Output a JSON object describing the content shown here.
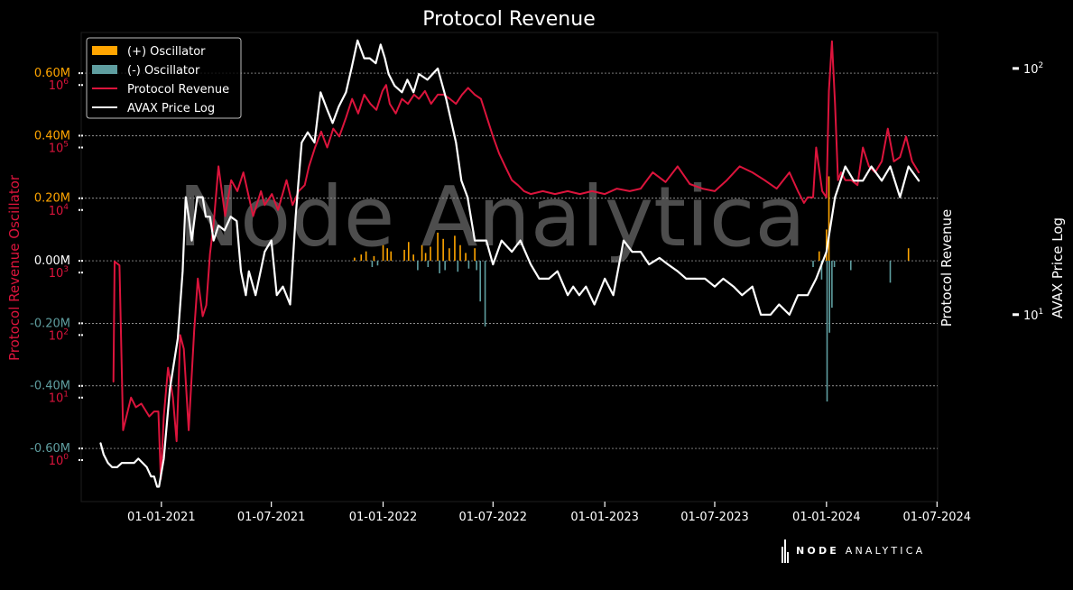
{
  "title": "Protocol Revenue",
  "watermark": "Node Analytica",
  "brand": {
    "primary": "NODE",
    "secondary": "ANALYTICA"
  },
  "colors": {
    "background": "#000000",
    "pos_oscillator": "#ffa500",
    "neg_oscillator": "#5f9ea0",
    "revenue": "#dc143c",
    "price": "#ffffff",
    "grid": "#ffffff",
    "watermark": "#8c8c8c"
  },
  "chart_data": {
    "type": "line",
    "title": "Protocol Revenue",
    "grid": true,
    "legend_position": "top-left",
    "legend": [
      "(+) Oscillator",
      "(-) Oscillator",
      "Protocol Revenue",
      "AVAX Price Log"
    ],
    "axes": {
      "x_ticks": [
        "01-01-2021",
        "01-07-2021",
        "01-01-2022",
        "01-07-2022",
        "01-01-2023",
        "01-07-2023",
        "01-01-2024",
        "01-07-2024"
      ],
      "x_range": [
        "2020-08-22",
        "2024-07-02"
      ],
      "left_oscillator": {
        "label": "Protocol Revenue Oscillator",
        "ticks": [
          "0.60M",
          "0.40M",
          "0.20M",
          "0.00M",
          "-0.20M",
          "-0.40M",
          "-0.60M"
        ],
        "range": [
          -0.77,
          0.73
        ]
      },
      "left_revenue_log": {
        "ticks": [
          "10^6",
          "10^5",
          "10^4",
          "10^3",
          "10^2",
          "10^1",
          "10^0"
        ]
      },
      "right_revenue": {
        "label": "Protocol Revenue"
      },
      "right_price_log": {
        "label": "AVAX Price Log",
        "ticks": [
          "10^2",
          "10^1"
        ],
        "range": [
          1.74,
          140
        ]
      }
    },
    "series": [
      {
        "name": "Protocol Revenue",
        "scale": "log",
        "x": [
          "2020-10-14",
          "2020-10-16",
          "2020-10-24",
          "2020-10-30",
          "2020-11-12",
          "2020-11-20",
          "2020-11-29",
          "2020-12-12",
          "2020-12-20",
          "2020-12-27",
          "2020-12-31",
          "2021-01-05",
          "2021-01-12",
          "2021-01-20",
          "2021-01-26",
          "2021-02-01",
          "2021-02-07",
          "2021-02-15",
          "2021-02-24",
          "2021-03-02",
          "2021-03-10",
          "2021-03-16",
          "2021-03-22",
          "2021-03-28",
          "2021-04-05",
          "2021-04-16",
          "2021-04-26",
          "2021-05-06",
          "2021-05-16",
          "2021-06-01",
          "2021-06-14",
          "2021-06-20",
          "2021-07-02",
          "2021-07-12",
          "2021-07-26",
          "2021-08-05",
          "2021-08-15",
          "2021-08-25",
          "2021-09-01",
          "2021-09-11",
          "2021-09-21",
          "2021-10-01",
          "2021-10-11",
          "2021-10-21",
          "2021-11-01",
          "2021-11-11",
          "2021-11-21",
          "2021-12-01",
          "2021-12-11",
          "2021-12-21",
          "2021-12-31",
          "2022-01-06",
          "2022-01-12",
          "2022-01-22",
          "2022-02-01",
          "2022-02-11",
          "2022-02-21",
          "2022-03-01",
          "2022-03-11",
          "2022-03-21",
          "2022-04-01",
          "2022-04-11",
          "2022-04-21",
          "2022-05-01",
          "2022-05-11",
          "2022-05-21",
          "2022-06-01",
          "2022-06-11",
          "2022-06-21",
          "2022-07-01",
          "2022-07-11",
          "2022-07-21",
          "2022-08-01",
          "2022-08-11",
          "2022-08-21",
          "2022-09-01",
          "2022-09-21",
          "2022-10-11",
          "2022-11-01",
          "2022-11-21",
          "2022-12-11",
          "2023-01-01",
          "2023-01-21",
          "2023-02-11",
          "2023-03-01",
          "2023-03-21",
          "2023-04-11",
          "2023-05-01",
          "2023-05-21",
          "2023-06-11",
          "2023-07-01",
          "2023-07-21",
          "2023-08-11",
          "2023-09-01",
          "2023-09-21",
          "2023-10-11",
          "2023-11-01",
          "2023-11-15",
          "2023-11-25",
          "2023-12-01",
          "2023-12-10",
          "2023-12-15",
          "2023-12-25",
          "2024-01-01",
          "2024-01-05",
          "2024-01-10",
          "2024-01-15",
          "2024-01-20",
          "2024-01-25",
          "2024-02-01",
          "2024-02-11",
          "2024-02-21",
          "2024-03-01",
          "2024-03-11",
          "2024-03-21",
          "2024-04-01",
          "2024-04-11",
          "2024-04-21",
          "2024-05-01",
          "2024-05-11",
          "2024-05-21",
          "2024-06-01"
        ],
        "values": [
          18,
          1500,
          1300,
          3,
          10,
          7,
          8,
          5,
          6,
          6,
          0.5,
          5,
          30,
          10,
          2,
          100,
          60,
          3,
          120,
          800,
          200,
          300,
          2000,
          6000,
          50000,
          8000,
          30000,
          20000,
          40000,
          8000,
          20000,
          12000,
          18000,
          10000,
          30000,
          12000,
          20000,
          25000,
          50000,
          100000,
          180000,
          100000,
          200000,
          150000,
          300000,
          600000,
          350000,
          700000,
          500000,
          400000,
          800000,
          1000000,
          500000,
          350000,
          600000,
          500000,
          700000,
          600000,
          800000,
          500000,
          700000,
          700000,
          600000,
          500000,
          700000,
          900000,
          700000,
          600000,
          300000,
          150000,
          80000,
          50000,
          30000,
          25000,
          20000,
          18000,
          20000,
          18000,
          20000,
          18000,
          20000,
          18000,
          22000,
          20000,
          22000,
          40000,
          28000,
          50000,
          26000,
          22000,
          20000,
          30000,
          50000,
          40000,
          30000,
          22000,
          40000,
          20000,
          13000,
          16000,
          16000,
          100000,
          20000,
          16000,
          800000,
          5000000,
          500000,
          30000,
          40000,
          30000,
          30000,
          25000,
          100000,
          50000,
          40000,
          60000,
          200000,
          60000,
          70000,
          150000,
          60000,
          40000
        ]
      },
      {
        "name": "AVAX Price Log",
        "scale": "log",
        "x": [
          "2020-09-23",
          "2020-09-28",
          "2020-10-05",
          "2020-10-12",
          "2020-10-20",
          "2020-10-28",
          "2020-11-03",
          "2020-11-10",
          "2020-11-17",
          "2020-11-24",
          "2020-12-01",
          "2020-12-08",
          "2020-12-15",
          "2020-12-20",
          "2020-12-25",
          "2020-12-28",
          "2021-01-05",
          "2021-01-15",
          "2021-01-28",
          "2021-02-05",
          "2021-02-10",
          "2021-02-15",
          "2021-02-20",
          "2021-03-01",
          "2021-03-10",
          "2021-03-15",
          "2021-03-22",
          "2021-03-28",
          "2021-04-05",
          "2021-04-15",
          "2021-04-25",
          "2021-05-05",
          "2021-05-12",
          "2021-05-20",
          "2021-05-25",
          "2021-06-05",
          "2021-06-20",
          "2021-07-01",
          "2021-07-10",
          "2021-07-20",
          "2021-08-01",
          "2021-08-10",
          "2021-08-20",
          "2021-08-30",
          "2021-09-10",
          "2021-09-20",
          "2021-10-01",
          "2021-10-10",
          "2021-10-20",
          "2021-11-01",
          "2021-11-10",
          "2021-11-20",
          "2021-12-01",
          "2021-12-10",
          "2021-12-20",
          "2021-12-28",
          "2022-01-04",
          "2022-01-10",
          "2022-01-20",
          "2022-02-01",
          "2022-02-10",
          "2022-02-20",
          "2022-03-01",
          "2022-03-15",
          "2022-04-01",
          "2022-04-15",
          "2022-05-01",
          "2022-05-10",
          "2022-05-20",
          "2022-06-01",
          "2022-06-10",
          "2022-06-20",
          "2022-07-01",
          "2022-07-15",
          "2022-08-01",
          "2022-08-15",
          "2022-09-01",
          "2022-09-15",
          "2022-10-01",
          "2022-10-15",
          "2022-11-01",
          "2022-11-10",
          "2022-11-20",
          "2022-12-01",
          "2022-12-15",
          "2023-01-01",
          "2023-01-15",
          "2023-02-01",
          "2023-02-15",
          "2023-03-01",
          "2023-03-15",
          "2023-04-01",
          "2023-04-15",
          "2023-05-01",
          "2023-05-15",
          "2023-06-01",
          "2023-06-15",
          "2023-07-01",
          "2023-07-15",
          "2023-08-01",
          "2023-08-15",
          "2023-09-01",
          "2023-09-15",
          "2023-10-01",
          "2023-10-15",
          "2023-11-01",
          "2023-11-15",
          "2023-12-01",
          "2023-12-15",
          "2024-01-01",
          "2024-01-15",
          "2024-02-01",
          "2024-02-15",
          "2024-03-01",
          "2024-03-15",
          "2024-04-01",
          "2024-04-15",
          "2024-05-01",
          "2024-05-15",
          "2024-06-01"
        ],
        "values": [
          3.0,
          2.7,
          2.5,
          2.4,
          2.4,
          2.5,
          2.5,
          2.5,
          2.5,
          2.6,
          2.5,
          2.4,
          2.2,
          2.2,
          2.0,
          2.0,
          2.6,
          5.0,
          8.0,
          15,
          30,
          25,
          20,
          30,
          30,
          25,
          25,
          20,
          23,
          22,
          25,
          24,
          15,
          12,
          15,
          12,
          18,
          20,
          12,
          13,
          11,
          25,
          50,
          55,
          50,
          80,
          68,
          60,
          70,
          80,
          100,
          130,
          110,
          110,
          105,
          125,
          110,
          95,
          85,
          80,
          90,
          80,
          95,
          90,
          100,
          75,
          50,
          35,
          30,
          20,
          20,
          20,
          16,
          20,
          18,
          20,
          16,
          14,
          14,
          15,
          12,
          13,
          12,
          13,
          11,
          14,
          12,
          20,
          18,
          18,
          16,
          17,
          16,
          15,
          14,
          14,
          14,
          13,
          14,
          13,
          12,
          13,
          10,
          10,
          11,
          10,
          12,
          12,
          14,
          18,
          30,
          40,
          35,
          35,
          40,
          35,
          40,
          30,
          40,
          35
        ]
      },
      {
        "name": "(+) Oscillator",
        "type": "bar",
        "x": [
          "2021-11-15",
          "2021-11-26",
          "2021-12-04",
          "2021-12-17",
          "2022-01-01",
          "2022-01-08",
          "2022-01-14",
          "2022-02-05",
          "2022-02-12",
          "2022-02-20",
          "2022-03-06",
          "2022-03-12",
          "2022-03-20",
          "2022-04-01",
          "2022-04-10",
          "2022-04-20",
          "2022-04-29",
          "2022-05-08",
          "2022-05-17",
          "2022-06-01",
          "2023-12-20",
          "2024-01-01",
          "2024-01-05",
          "2024-05-15"
        ],
        "values": [
          0.01,
          0.02,
          0.03,
          0.015,
          0.05,
          0.04,
          0.03,
          0.035,
          0.06,
          0.02,
          0.05,
          0.025,
          0.045,
          0.09,
          0.07,
          0.04,
          0.08,
          0.05,
          0.025,
          0.04,
          0.03,
          0.1,
          0.27,
          0.04
        ]
      },
      {
        "name": "(-) Oscillator",
        "type": "bar",
        "x": [
          "2021-12-14",
          "2021-12-23",
          "2022-02-27",
          "2022-03-16",
          "2022-04-04",
          "2022-04-13",
          "2022-05-04",
          "2022-05-22",
          "2022-06-04",
          "2022-06-10",
          "2022-06-18",
          "2023-12-10",
          "2023-12-24",
          "2024-01-02",
          "2024-01-06",
          "2024-01-10",
          "2024-01-14",
          "2024-02-10",
          "2024-04-15"
        ],
        "values": [
          -0.02,
          -0.015,
          -0.03,
          -0.02,
          -0.04,
          -0.03,
          -0.035,
          -0.025,
          -0.03,
          -0.13,
          -0.21,
          -0.02,
          -0.06,
          -0.45,
          -0.23,
          -0.15,
          -0.02,
          -0.03,
          -0.07
        ]
      }
    ]
  }
}
